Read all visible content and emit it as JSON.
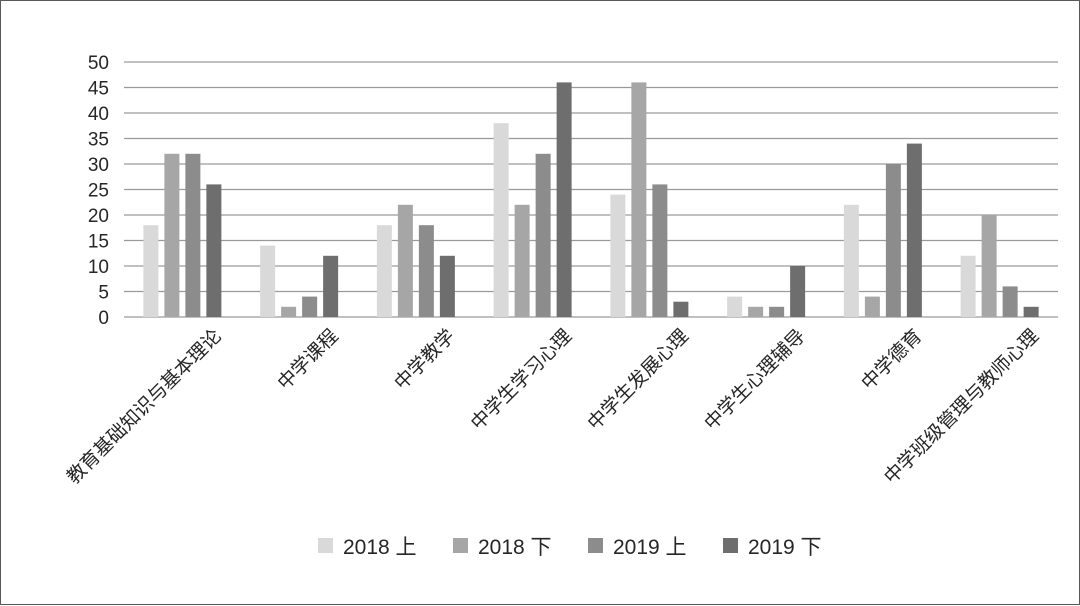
{
  "chart_data": {
    "type": "bar",
    "categories": [
      "教育基础知识与基本理论",
      "中学课程",
      "中学教学",
      "中学生学习心理",
      "中学生发展心理",
      "中学生心理辅导",
      "中学德育",
      "中学班级管理与教师心理"
    ],
    "series": [
      {
        "name": "2018 上",
        "color": "#d9d9d9",
        "values": [
          18,
          14,
          18,
          38,
          24,
          4,
          22,
          12
        ]
      },
      {
        "name": "2018 下",
        "color": "#a6a6a6",
        "values": [
          32,
          2,
          22,
          22,
          46,
          2,
          4,
          20
        ]
      },
      {
        "name": "2019 上",
        "color": "#8c8c8c",
        "values": [
          32,
          4,
          18,
          32,
          26,
          2,
          30,
          6
        ]
      },
      {
        "name": "2019 下",
        "color": "#6e6e6e",
        "values": [
          26,
          12,
          12,
          46,
          3,
          10,
          34,
          2
        ]
      }
    ],
    "yticks": [
      "0",
      "5",
      "10",
      "15",
      "20",
      "25",
      "30",
      "35",
      "40",
      "45",
      "50"
    ],
    "ylim": [
      0,
      50
    ],
    "grid": true,
    "legend_position": "bottom",
    "gridline_color": "#9a9a9a"
  }
}
